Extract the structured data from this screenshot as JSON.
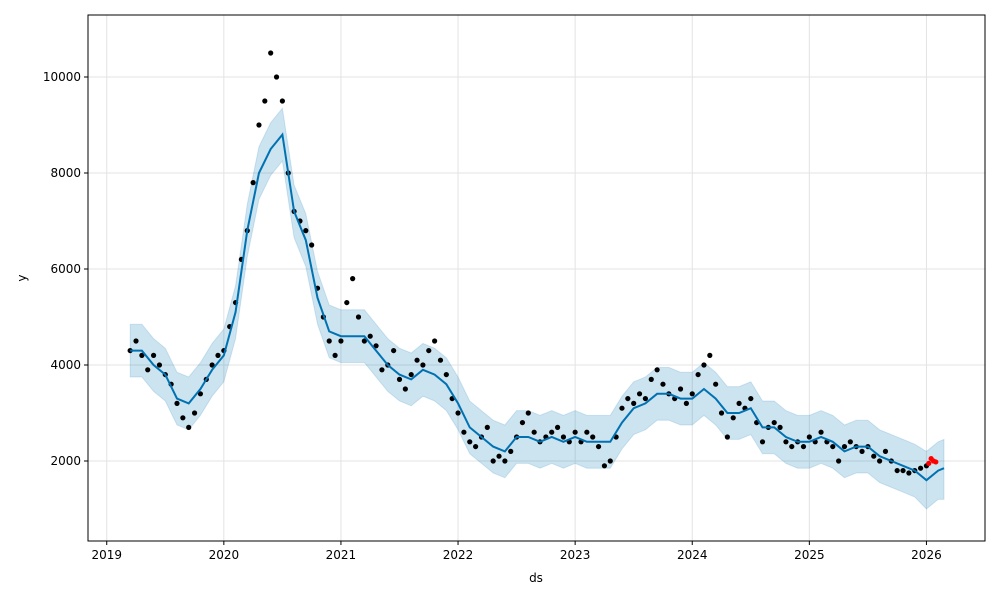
{
  "chart_data": {
    "type": "forecast",
    "xlabel": "ds",
    "ylabel": "y",
    "xlim": [
      2018.84,
      2026.5
    ],
    "ylim": [
      333,
      11292
    ],
    "xticks": [
      2019,
      2020,
      2021,
      2022,
      2023,
      2024,
      2025,
      2026
    ],
    "yticks": [
      2000,
      4000,
      6000,
      8000,
      10000
    ],
    "grid": true,
    "observed": {
      "color": "#000000",
      "x": [
        2019.2,
        2019.25,
        2019.3,
        2019.35,
        2019.4,
        2019.45,
        2019.5,
        2019.55,
        2019.6,
        2019.65,
        2019.7,
        2019.75,
        2019.8,
        2019.85,
        2019.9,
        2019.95,
        2020,
        2020.05,
        2020.1,
        2020.15,
        2020.2,
        2020.25,
        2020.3,
        2020.35,
        2020.4,
        2020.45,
        2020.5,
        2020.55,
        2020.6,
        2020.65,
        2020.7,
        2020.75,
        2020.8,
        2020.85,
        2020.9,
        2020.95,
        2021,
        2021.05,
        2021.1,
        2021.15,
        2021.2,
        2021.25,
        2021.3,
        2021.35,
        2021.4,
        2021.45,
        2021.5,
        2021.55,
        2021.6,
        2021.65,
        2021.7,
        2021.75,
        2021.8,
        2021.85,
        2021.9,
        2021.95,
        2022,
        2022.05,
        2022.1,
        2022.15,
        2022.2,
        2022.25,
        2022.3,
        2022.35,
        2022.4,
        2022.45,
        2022.5,
        2022.55,
        2022.6,
        2022.65,
        2022.7,
        2022.75,
        2022.8,
        2022.85,
        2022.9,
        2022.95,
        2023,
        2023.05,
        2023.1,
        2023.15,
        2023.2,
        2023.25,
        2023.3,
        2023.35,
        2023.4,
        2023.45,
        2023.5,
        2023.55,
        2023.6,
        2023.65,
        2023.7,
        2023.75,
        2023.8,
        2023.85,
        2023.9,
        2023.95,
        2024,
        2024.05,
        2024.1,
        2024.15,
        2024.2,
        2024.25,
        2024.3,
        2024.35,
        2024.4,
        2024.45,
        2024.5,
        2024.55,
        2024.6,
        2024.65,
        2024.7,
        2024.75,
        2024.8,
        2024.85,
        2024.9,
        2024.95,
        2025,
        2025.05,
        2025.1,
        2025.15,
        2025.2,
        2025.25,
        2025.3,
        2025.35,
        2025.4,
        2025.45,
        2025.5,
        2025.55,
        2025.6,
        2025.65,
        2025.7,
        2025.75,
        2025.8,
        2025.85,
        2025.9,
        2025.95,
        2026
      ],
      "values": [
        4300,
        4500,
        4200,
        3900,
        4200,
        4000,
        3800,
        3600,
        3200,
        2900,
        2700,
        3000,
        3400,
        3700,
        4000,
        4200,
        4300,
        4800,
        5300,
        6200,
        6800,
        7800,
        9000,
        9500,
        10500,
        10000,
        9500,
        8000,
        7200,
        7000,
        6800,
        6500,
        5600,
        5000,
        4500,
        4200,
        4500,
        5300,
        5800,
        5000,
        4500,
        4600,
        4400,
        3900,
        4000,
        4300,
        3700,
        3500,
        3800,
        4100,
        4000,
        4300,
        4500,
        4100,
        3800,
        3300,
        3000,
        2600,
        2400,
        2300,
        2500,
        2700,
        2000,
        2100,
        2000,
        2200,
        2500,
        2800,
        3000,
        2600,
        2400,
        2500,
        2600,
        2700,
        2500,
        2400,
        2600,
        2400,
        2600,
        2500,
        2300,
        1900,
        2000,
        2500,
        3100,
        3300,
        3200,
        3400,
        3300,
        3700,
        3900,
        3600,
        3400,
        3300,
        3500,
        3200,
        3400,
        3800,
        4000,
        4200,
        3600,
        3000,
        2500,
        2900,
        3200,
        3100,
        3300,
        2800,
        2400,
        2700,
        2800,
        2700,
        2400,
        2300,
        2400,
        2300,
        2500,
        2400,
        2600,
        2400,
        2300,
        2000,
        2300,
        2400,
        2300,
        2200,
        2300,
        2100,
        2000,
        2200,
        2000,
        1800,
        1800,
        1750,
        1800,
        1850,
        1900
      ]
    },
    "future": {
      "color": "#ff0000",
      "x": [
        2026.02,
        2026.04,
        2026.06,
        2026.08
      ],
      "values": [
        1950,
        2050,
        2000,
        1980
      ]
    },
    "forecast": {
      "color": "#0072b2",
      "x": [
        2019.2,
        2019.3,
        2019.4,
        2019.5,
        2019.6,
        2019.7,
        2019.8,
        2019.9,
        2020,
        2020.1,
        2020.2,
        2020.3,
        2020.4,
        2020.5,
        2020.6,
        2020.7,
        2020.8,
        2020.9,
        2021,
        2021.1,
        2021.2,
        2021.3,
        2021.4,
        2021.5,
        2021.6,
        2021.7,
        2021.8,
        2021.9,
        2022,
        2022.1,
        2022.2,
        2022.3,
        2022.4,
        2022.5,
        2022.6,
        2022.7,
        2022.8,
        2022.9,
        2023,
        2023.1,
        2023.2,
        2023.3,
        2023.4,
        2023.5,
        2023.6,
        2023.7,
        2023.8,
        2023.9,
        2024,
        2024.1,
        2024.2,
        2024.3,
        2024.4,
        2024.5,
        2024.6,
        2024.7,
        2024.8,
        2024.9,
        2025,
        2025.1,
        2025.2,
        2025.3,
        2025.4,
        2025.5,
        2025.6,
        2025.7,
        2025.8,
        2025.9,
        2026,
        2026.1,
        2026.15
      ],
      "values": [
        4300,
        4300,
        4000,
        3800,
        3300,
        3200,
        3500,
        3900,
        4200,
        5100,
        6800,
        8000,
        8500,
        8800,
        7200,
        6600,
        5400,
        4700,
        4600,
        4600,
        4600,
        4300,
        4000,
        3800,
        3700,
        3900,
        3800,
        3600,
        3200,
        2700,
        2500,
        2300,
        2200,
        2500,
        2500,
        2400,
        2500,
        2400,
        2500,
        2400,
        2400,
        2400,
        2800,
        3100,
        3200,
        3400,
        3400,
        3300,
        3300,
        3500,
        3300,
        3000,
        3000,
        3100,
        2700,
        2700,
        2500,
        2400,
        2400,
        2500,
        2400,
        2200,
        2300,
        2300,
        2100,
        2000,
        1900,
        1800,
        1600,
        1800,
        1850
      ],
      "lower": [
        3750,
        3750,
        3450,
        3250,
        2750,
        2650,
        2950,
        3350,
        3650,
        4550,
        6250,
        7450,
        7950,
        8250,
        6650,
        6050,
        4850,
        4150,
        4050,
        4050,
        4050,
        3750,
        3450,
        3250,
        3150,
        3350,
        3250,
        3050,
        2650,
        2150,
        1950,
        1750,
        1650,
        1950,
        1950,
        1850,
        1950,
        1850,
        1950,
        1850,
        1850,
        1850,
        2250,
        2550,
        2650,
        2850,
        2850,
        2750,
        2750,
        2950,
        2750,
        2450,
        2450,
        2550,
        2150,
        2150,
        1950,
        1850,
        1850,
        1950,
        1850,
        1650,
        1750,
        1750,
        1550,
        1450,
        1350,
        1250,
        1000,
        1200,
        1200
      ],
      "upper": [
        4850,
        4850,
        4550,
        4350,
        3850,
        3750,
        4050,
        4450,
        4750,
        5650,
        7350,
        8550,
        9050,
        9350,
        7750,
        7150,
        5950,
        5250,
        5150,
        5150,
        5150,
        4850,
        4550,
        4350,
        4250,
        4450,
        4350,
        4150,
        3750,
        3250,
        3050,
        2850,
        2750,
        3050,
        3050,
        2950,
        3050,
        2950,
        3050,
        2950,
        2950,
        2950,
        3350,
        3650,
        3750,
        3950,
        3950,
        3850,
        3850,
        4050,
        3850,
        3550,
        3550,
        3650,
        3250,
        3250,
        3050,
        2950,
        2950,
        3050,
        2950,
        2750,
        2850,
        2850,
        2650,
        2550,
        2450,
        2350,
        2200,
        2400,
        2450
      ]
    }
  }
}
